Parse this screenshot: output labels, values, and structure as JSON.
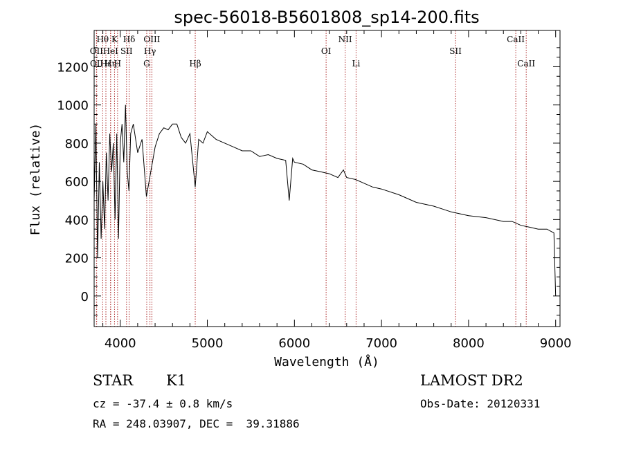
{
  "chart_data": {
    "type": "line",
    "title": "spec-56018-B5601808_sp14-200.fits",
    "xlabel": "Wavelength (Å)",
    "ylabel": "Flux (relative)",
    "xlim": [
      3700,
      9050
    ],
    "ylim": [
      -160,
      1390
    ],
    "x_ticks": [
      4000,
      5000,
      6000,
      7000,
      8000,
      9000
    ],
    "y_ticks": [
      0,
      200,
      400,
      600,
      800,
      1000,
      1200
    ],
    "grid": false,
    "series": [
      {
        "x": [
          3700,
          3720,
          3740,
          3760,
          3780,
          3800,
          3820,
          3840,
          3860,
          3880,
          3900,
          3920,
          3940,
          3960,
          3980,
          4000,
          4020,
          4040,
          4060,
          4080,
          4100,
          4120,
          4150,
          4200,
          4250,
          4300,
          4350,
          4400,
          4450,
          4500,
          4550,
          4600,
          4650,
          4700,
          4750,
          4800,
          4861,
          4900,
          4950,
          5000,
          5100,
          5200,
          5300,
          5400,
          5500,
          5600,
          5700,
          5800,
          5900,
          5940,
          5980,
          6000,
          6100,
          6200,
          6300,
          6400,
          6500,
          6563,
          6600,
          6700,
          6800,
          6900,
          7000,
          7200,
          7400,
          7600,
          7800,
          8000,
          8200,
          8400,
          8500,
          8600,
          8700,
          8800,
          8900,
          8980,
          9000
        ],
        "y": [
          500,
          900,
          200,
          700,
          300,
          600,
          350,
          750,
          500,
          850,
          650,
          800,
          400,
          850,
          300,
          800,
          900,
          700,
          1000,
          650,
          550,
          850,
          900,
          750,
          820,
          520,
          650,
          780,
          850,
          880,
          870,
          900,
          900,
          830,
          800,
          850,
          570,
          820,
          800,
          860,
          820,
          800,
          780,
          760,
          760,
          730,
          740,
          720,
          710,
          500,
          720,
          700,
          690,
          660,
          650,
          640,
          620,
          660,
          620,
          610,
          590,
          570,
          560,
          530,
          490,
          470,
          440,
          420,
          410,
          390,
          390,
          370,
          360,
          350,
          350,
          330,
          0
        ]
      }
    ],
    "line_markers": [
      {
        "label": "Hθ",
        "x": 3798,
        "row": 1
      },
      {
        "label": "OII",
        "x": 3727,
        "row": 2
      },
      {
        "label": "OII",
        "x": 3729,
        "row": 3
      },
      {
        "label": "Hε",
        "x": 3835,
        "row": 3
      },
      {
        "label": "HeI",
        "x": 3889,
        "row": 2
      },
      {
        "label": "Hη",
        "x": 3889,
        "row": 3
      },
      {
        "label": "K",
        "x": 3934,
        "row": 1
      },
      {
        "label": "SII",
        "x": 4072,
        "row": 2
      },
      {
        "label": "H",
        "x": 3969,
        "row": 3
      },
      {
        "label": "Hδ",
        "x": 4102,
        "row": 1
      },
      {
        "label": "OIII",
        "x": 4363,
        "row": 1
      },
      {
        "label": "Hγ",
        "x": 4341,
        "row": 2
      },
      {
        "label": "G",
        "x": 4304,
        "row": 3
      },
      {
        "label": "Hβ",
        "x": 4861,
        "row": 3
      },
      {
        "label": "OI",
        "x": 6364,
        "row": 2
      },
      {
        "label": "NII",
        "x": 6583,
        "row": 1
      },
      {
        "label": "Li",
        "x": 6708,
        "row": 3
      },
      {
        "label": "SII",
        "x": 7850,
        "row": 2
      },
      {
        "label": "CaII",
        "x": 8542,
        "row": 1
      },
      {
        "label": "CaII",
        "x": 8662,
        "row": 3
      }
    ]
  },
  "info": {
    "class_label": "STAR",
    "subclass": "K1",
    "survey": "LAMOST DR2",
    "cz": "cz = -37.4 ± 0.8 km/s",
    "obs_date": "Obs-Date: 20120331",
    "coords": "RA = 248.03907, DEC =  39.31886"
  }
}
